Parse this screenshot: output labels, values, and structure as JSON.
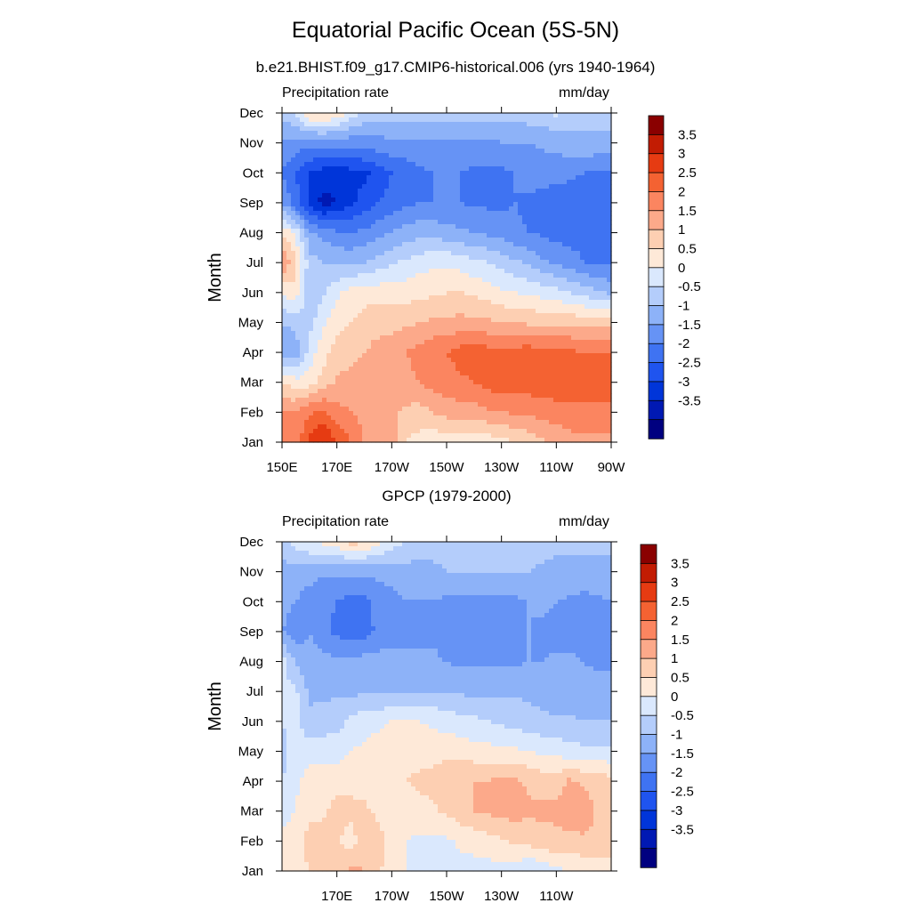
{
  "title": "Equatorial Pacific Ocean (5S-5N)",
  "subtitle": "b.e21.BHIST.f09_g17.CMIP6-historical.006 (yrs 1940-1964)",
  "chart_data": [
    {
      "type": "heatmap",
      "title": "",
      "left_label": "Precipitation rate",
      "right_label": "mm/day",
      "ylabel": "Month",
      "x_ticks": [
        "150E",
        "170E",
        "170W",
        "150W",
        "130W",
        "110W",
        "90W"
      ],
      "x_tick_values": [
        150,
        170,
        190,
        210,
        230,
        250,
        270
      ],
      "x_tick_labels_shown": true,
      "y_ticks": [
        "Jan",
        "Feb",
        "Mar",
        "Apr",
        "May",
        "Jun",
        "Jul",
        "Aug",
        "Sep",
        "Oct",
        "Nov",
        "Dec"
      ],
      "x": [
        150,
        155,
        160,
        165,
        170,
        175,
        180,
        185,
        190,
        195,
        200,
        205,
        210,
        215,
        220,
        225,
        230,
        235,
        240,
        245,
        250,
        255,
        260,
        265,
        270
      ],
      "z": [
        [
          2.0,
          2.2,
          3.2,
          3.6,
          3.0,
          2.5,
          2.0,
          1.8,
          1.7,
          1.0,
          0.8,
          0.7,
          0.6,
          0.6,
          0.6,
          0.7,
          0.8,
          1.0,
          1.2,
          1.4,
          1.6,
          1.8,
          1.9,
          1.9,
          1.9
        ],
        [
          2.0,
          2.0,
          2.4,
          2.6,
          2.2,
          2.0,
          1.8,
          1.8,
          1.6,
          1.4,
          1.3,
          1.5,
          1.7,
          1.8,
          1.8,
          1.9,
          2.0,
          2.1,
          2.1,
          2.2,
          2.3,
          2.3,
          2.3,
          2.3,
          2.3
        ],
        [
          1.0,
          0.7,
          0.8,
          1.2,
          1.6,
          1.7,
          1.8,
          1.8,
          1.7,
          1.8,
          2.0,
          2.2,
          2.3,
          2.4,
          2.5,
          2.7,
          2.8,
          2.8,
          2.8,
          2.9,
          2.8,
          2.8,
          2.8,
          2.8,
          2.8
        ],
        [
          -1.0,
          -0.8,
          0.2,
          0.8,
          1.2,
          1.3,
          1.5,
          1.7,
          1.8,
          2.0,
          2.2,
          2.4,
          2.5,
          2.7,
          2.8,
          2.7,
          2.7,
          2.7,
          2.8,
          2.7,
          2.7,
          2.6,
          2.5,
          2.5,
          2.5
        ],
        [
          -0.5,
          -0.3,
          -0.2,
          0.4,
          0.8,
          1.0,
          1.2,
          1.3,
          1.3,
          1.4,
          1.5,
          1.6,
          1.6,
          1.7,
          1.6,
          1.6,
          1.5,
          1.5,
          1.4,
          1.4,
          1.4,
          1.4,
          1.3,
          1.3,
          1.3
        ],
        [
          0.6,
          0.8,
          -0.4,
          -0.1,
          0.4,
          0.7,
          0.8,
          0.8,
          0.8,
          0.8,
          0.8,
          0.9,
          1.0,
          1.0,
          0.9,
          0.8,
          0.6,
          0.5,
          0.4,
          0.3,
          0.2,
          0.0,
          -0.2,
          -0.4,
          -0.6
        ],
        [
          2.0,
          1.2,
          -0.3,
          -0.5,
          -0.6,
          -0.6,
          -0.5,
          -0.3,
          -0.1,
          0.1,
          0.3,
          0.4,
          0.4,
          0.3,
          0.1,
          0.0,
          -0.2,
          -0.4,
          -0.6,
          -0.9,
          -1.1,
          -1.3,
          -1.5,
          -1.6,
          -1.6
        ],
        [
          1.0,
          0.3,
          -0.9,
          -1.2,
          -1.4,
          -1.5,
          -1.4,
          -1.2,
          -1.0,
          -0.8,
          -0.7,
          -0.7,
          -0.8,
          -0.9,
          -1.0,
          -1.1,
          -1.2,
          -1.4,
          -1.5,
          -1.6,
          -1.7,
          -1.7,
          -1.6,
          -1.6,
          -1.6
        ],
        [
          -1.0,
          -1.8,
          -2.6,
          -3.2,
          -3.0,
          -2.6,
          -2.3,
          -2.0,
          -1.8,
          -1.6,
          -1.5,
          -1.5,
          -1.5,
          -1.5,
          -1.6,
          -1.6,
          -1.6,
          -1.5,
          -1.6,
          -1.7,
          -1.8,
          -1.8,
          -1.8,
          -1.8,
          -1.8
        ],
        [
          -1.5,
          -2.0,
          -2.5,
          -2.7,
          -2.8,
          -2.7,
          -2.6,
          -2.3,
          -2.0,
          -1.8,
          -1.6,
          -1.5,
          -1.5,
          -1.5,
          -1.6,
          -1.6,
          -1.6,
          -1.5,
          -1.3,
          -1.3,
          -1.3,
          -1.4,
          -1.5,
          -1.6,
          -1.6
        ],
        [
          -1.0,
          -1.2,
          -1.3,
          -1.3,
          -1.3,
          -1.3,
          -1.2,
          -1.2,
          -1.1,
          -1.1,
          -1.1,
          -1.1,
          -1.1,
          -1.1,
          -1.1,
          -1.1,
          -1.0,
          -1.0,
          -1.0,
          -0.9,
          -0.8,
          -0.7,
          -0.6,
          -0.6,
          -0.6
        ],
        [
          -0.4,
          0.0,
          1.0,
          1.2,
          0.9,
          0.3,
          -0.2,
          -0.3,
          -0.3,
          -0.3,
          -0.3,
          -0.3,
          -0.3,
          -0.3,
          -0.3,
          -0.3,
          -0.3,
          -0.3,
          -0.2,
          -0.2,
          0.1,
          -0.2,
          -0.3,
          -0.3,
          -0.3
        ]
      ]
    },
    {
      "type": "heatmap",
      "title": "GPCP (1979-2000)",
      "left_label": "Precipitation rate",
      "right_label": "mm/day",
      "ylabel": "Month",
      "x_ticks": [
        "170E",
        "170W",
        "150W",
        "130W",
        "110W"
      ],
      "x_tick_values": [
        170,
        190,
        210,
        230,
        250
      ],
      "x_tick_labels_shown": true,
      "y_ticks": [
        "Jan",
        "Feb",
        "Mar",
        "Apr",
        "May",
        "Jun",
        "Jul",
        "Aug",
        "Sep",
        "Oct",
        "Nov",
        "Dec"
      ],
      "x": [
        150,
        155,
        160,
        165,
        170,
        175,
        180,
        185,
        190,
        195,
        200,
        205,
        210,
        215,
        220,
        225,
        230,
        235,
        240,
        245,
        250,
        255,
        260,
        265,
        270
      ],
      "z": [
        [
          0.6,
          0.8,
          1.0,
          1.3,
          1.4,
          1.6,
          1.5,
          1.1,
          0.7,
          0.5,
          0.4,
          0.3,
          0.3,
          0.3,
          0.3,
          0.3,
          0.3,
          0.2,
          0.0,
          0.2,
          0.4,
          0.5,
          0.6,
          0.6,
          0.6
        ],
        [
          0.6,
          0.8,
          1.2,
          1.2,
          1.1,
          0.7,
          1.4,
          1.2,
          0.8,
          0.5,
          0.4,
          0.4,
          0.4,
          0.6,
          0.7,
          0.8,
          0.9,
          1.1,
          1.2,
          1.3,
          1.4,
          1.4,
          1.4,
          1.4,
          1.4
        ],
        [
          0.3,
          0.5,
          0.9,
          0.9,
          1.2,
          1.2,
          1.1,
          0.9,
          0.8,
          0.7,
          0.8,
          0.9,
          1.1,
          1.3,
          1.5,
          1.6,
          1.7,
          1.7,
          1.6,
          1.6,
          1.6,
          1.7,
          1.8,
          1.4,
          1.4
        ],
        [
          0.0,
          0.4,
          0.7,
          0.8,
          0.8,
          0.8,
          0.8,
          0.7,
          0.7,
          1.0,
          1.1,
          1.2,
          1.5,
          1.5,
          1.5,
          1.5,
          1.7,
          1.6,
          1.4,
          1.3,
          1.3,
          1.6,
          1.4,
          1.3,
          1.2
        ],
        [
          -0.2,
          0.2,
          0.3,
          0.3,
          0.3,
          0.5,
          0.6,
          0.7,
          0.8,
          0.8,
          0.8,
          0.8,
          0.8,
          0.8,
          0.7,
          0.7,
          0.6,
          0.6,
          0.5,
          0.4,
          0.3,
          0.2,
          0.1,
          0.1,
          0.1
        ],
        [
          0.0,
          0.2,
          -0.4,
          -0.3,
          -0.2,
          0.1,
          0.3,
          0.4,
          0.5,
          0.5,
          0.5,
          0.4,
          0.3,
          0.2,
          0.1,
          0.0,
          -0.1,
          -0.2,
          -0.3,
          -0.4,
          -0.4,
          -0.4,
          -0.5,
          -0.5,
          -0.5
        ],
        [
          0.1,
          0.1,
          -0.6,
          -0.6,
          -0.6,
          -0.6,
          -0.6,
          -0.6,
          -0.6,
          -0.5,
          -0.5,
          -0.5,
          -0.5,
          -0.6,
          -0.6,
          -0.6,
          -0.6,
          -0.6,
          -0.6,
          -0.7,
          -0.8,
          -0.8,
          -0.8,
          -0.8,
          -0.8
        ],
        [
          0.2,
          -0.6,
          -0.8,
          -0.8,
          -0.9,
          -0.9,
          -0.8,
          -0.8,
          -0.8,
          -0.8,
          -0.8,
          -0.9,
          -1.0,
          -1.1,
          -1.1,
          -1.1,
          -1.1,
          -1.1,
          -1.0,
          -1.0,
          -0.9,
          -0.9,
          -1.0,
          -1.1,
          -1.1
        ],
        [
          -1.0,
          -1.3,
          -1.0,
          -1.4,
          -1.6,
          -1.8,
          -1.7,
          -1.4,
          -1.2,
          -1.2,
          -1.2,
          -1.1,
          -1.3,
          -1.4,
          -1.4,
          -1.4,
          -1.4,
          -1.2,
          -1.0,
          -1.1,
          -1.2,
          -1.3,
          -1.2,
          -1.1,
          -1.1
        ],
        [
          -0.8,
          -1.0,
          -1.2,
          -1.4,
          -1.5,
          -1.7,
          -1.6,
          -1.4,
          -1.2,
          -1.0,
          -1.0,
          -1.0,
          -1.1,
          -1.2,
          -1.2,
          -1.2,
          -1.1,
          -1.1,
          -1.0,
          -0.9,
          -1.0,
          -1.1,
          -1.2,
          -1.1,
          -1.0
        ],
        [
          -0.7,
          -0.8,
          -0.8,
          -0.9,
          -0.9,
          -0.9,
          -0.9,
          -0.8,
          -0.8,
          -0.7,
          -0.7,
          -0.6,
          -0.5,
          -0.5,
          -0.5,
          -0.5,
          -0.5,
          -0.5,
          -0.5,
          -0.6,
          -0.6,
          -0.6,
          -0.6,
          -0.6,
          -0.6
        ],
        [
          -0.2,
          0.3,
          0.5,
          0.6,
          0.8,
          1.2,
          1.1,
          0.6,
          0.3,
          0.0,
          -0.2,
          -0.3,
          -0.3,
          -0.3,
          -0.3,
          -0.3,
          -0.3,
          -0.3,
          -0.3,
          -0.3,
          -0.4,
          -0.4,
          -0.4,
          -0.4,
          -0.4
        ]
      ]
    }
  ],
  "colorbar": {
    "labels": [
      "3.5",
      "3",
      "2.5",
      "2",
      "1.5",
      "1",
      "0.5",
      "0",
      "-0.5",
      "-1",
      "-1.5",
      "-2",
      "-2.5",
      "-3",
      "-3.5"
    ],
    "levels": [
      3.5,
      3,
      2.5,
      2,
      1.5,
      1,
      0.5,
      0,
      -0.5,
      -1,
      -1.5,
      -2,
      -2.5,
      -3,
      -3.5
    ],
    "colors": [
      "#000080",
      "#0019b3",
      "#0035d9",
      "#1f54ef",
      "#3f73f2",
      "#6693f5",
      "#8db2f8",
      "#b4cdfb",
      "#dae8fd",
      "#fee9d8",
      "#fdcfb2",
      "#fca98a",
      "#fb8560",
      "#f46232",
      "#e63b12",
      "#c21c03",
      "#8a0000"
    ]
  }
}
